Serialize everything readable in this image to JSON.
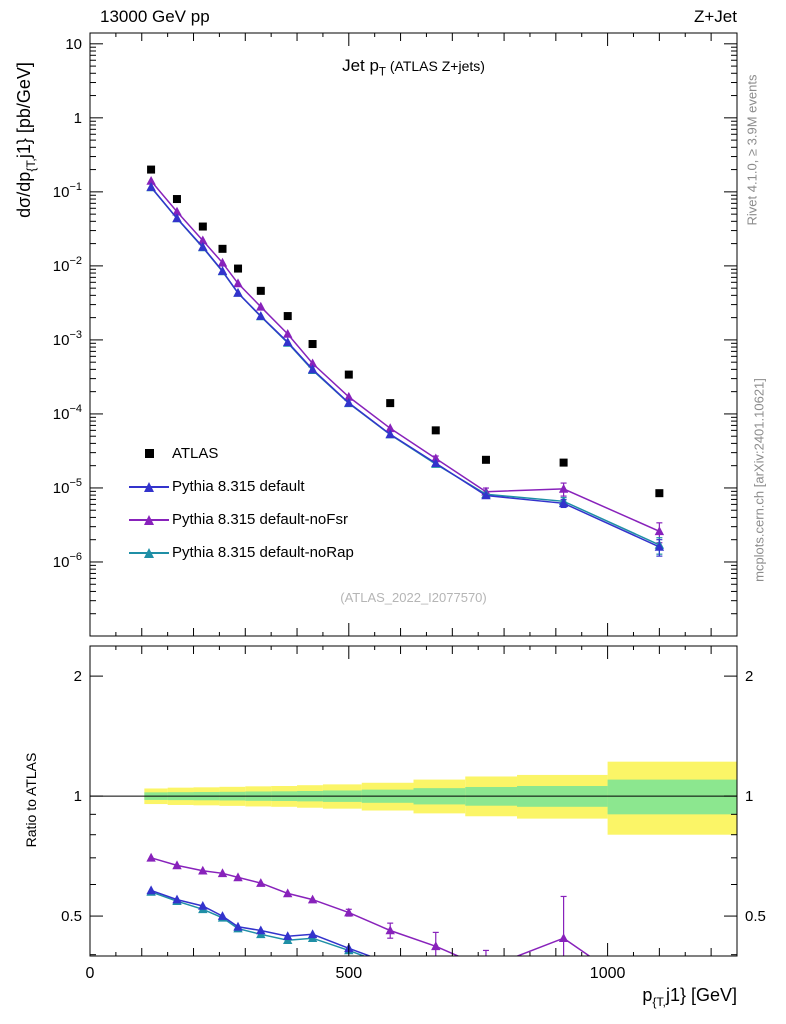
{
  "header": {
    "left": "13000 GeV pp",
    "right": "Z+Jet"
  },
  "titles": {
    "main": "Jet p",
    "main_sub": "T",
    "suffix": " (ATLAS Z+jets)"
  },
  "labels": {
    "ylabel_prefix": "dσ/dp",
    "ylabel_sub": "{T,",
    "ylabel_suffix": "j1} [pb/GeV]",
    "xlabel_prefix": "p",
    "xlabel_sub": "{T,",
    "xlabel_suffix": "j1} [GeV]",
    "ratio_ylabel": "Ratio to ATLAS",
    "watermark": "(ATLAS_2022_I2077570)"
  },
  "side_notes": {
    "top": "Rivet 4.1.0, ≥ 3.9M events",
    "bottom": "mcplots.cern.ch [arXiv:2401.10621]"
  },
  "chart_data": {
    "type": "line",
    "title": "Jet pT (ATLAS Z+jets)",
    "xlabel": "p_{T,j1} [GeV]",
    "ylabel_main": "dσ/dp_{T,j1} [pb/GeV]",
    "ylabel_ratio": "Ratio to ATLAS",
    "x_gev": [
      118,
      168,
      218,
      256,
      286,
      330,
      382,
      430,
      500,
      580,
      668,
      765,
      915,
      1100
    ],
    "atlas": {
      "label": "ATLAS",
      "color": "#000000",
      "marker": "square",
      "values": [
        0.2,
        0.08,
        0.034,
        0.017,
        0.0092,
        0.0046,
        0.0021,
        0.00088,
        0.00034,
        0.00014,
        6e-05,
        2.4e-05,
        2.2e-05,
        8.5e-06
      ]
    },
    "series": [
      {
        "key": "default",
        "label": "Pythia 8.315 default",
        "color": "#3333cc",
        "marker": "triangle",
        "values": [
          0.116,
          0.044,
          0.018,
          0.0085,
          0.0043,
          0.0021,
          0.00093,
          0.0004,
          0.000141,
          5.3e-05,
          2.16e-05,
          7.9e-06,
          6.2e-06,
          1.6e-06
        ],
        "value_relerr": [
          0,
          0,
          0,
          0,
          0,
          0,
          0,
          0,
          0,
          0,
          0,
          0,
          0.12,
          0.25
        ],
        "ratio": [
          0.58,
          0.55,
          0.53,
          0.5,
          0.47,
          0.46,
          0.445,
          0.45,
          0.415,
          0.38
        ],
        "ratio_err": [
          0,
          0,
          0,
          0,
          0,
          0,
          0,
          0,
          0,
          0
        ]
      },
      {
        "key": "noFsr",
        "label": "Pythia 8.315 default-noFsr",
        "color": "#8822bb",
        "marker": "triangle",
        "values": [
          0.14,
          0.054,
          0.022,
          0.011,
          0.0058,
          0.0028,
          0.0012,
          0.00048,
          0.00017,
          6.4e-05,
          2.5e-05,
          8.9e-06,
          9.7e-06,
          2.6e-06
        ],
        "value_relerr": [
          0,
          0,
          0,
          0,
          0,
          0,
          0,
          0,
          0,
          0,
          0.08,
          0.12,
          0.2,
          0.3
        ],
        "ratio": [
          0.7,
          0.67,
          0.65,
          0.64,
          0.625,
          0.605,
          0.57,
          0.55,
          0.51,
          0.46,
          0.42,
          0.37,
          0.44,
          0.3
        ],
        "ratio_err": [
          0,
          0,
          0,
          0,
          0,
          0,
          0,
          0,
          0.01,
          0.02,
          0.035,
          0.04,
          0.12,
          0.05
        ]
      },
      {
        "key": "noRap",
        "label": "Pythia 8.315 default-noRap",
        "color": "#1f8fa6",
        "marker": "triangle",
        "values": [
          0.115,
          0.0436,
          0.0177,
          0.0084,
          0.0043,
          0.00207,
          0.00091,
          0.00039,
          0.000139,
          5.25e-05,
          2.1e-05,
          8.2e-06,
          6.6e-06,
          1.7e-06
        ],
        "value_relerr": [
          0,
          0,
          0,
          0,
          0,
          0,
          0,
          0,
          0,
          0,
          0,
          0,
          0.12,
          0.25
        ],
        "ratio": [
          0.575,
          0.545,
          0.52,
          0.495,
          0.465,
          0.45,
          0.435,
          0.44,
          0.41,
          0.375
        ],
        "ratio_err": [
          0,
          0,
          0,
          0,
          0,
          0,
          0,
          0,
          0,
          0
        ]
      }
    ],
    "bands": {
      "yellow_color": "#fbf567",
      "green_color": "#8ce78f",
      "edges_gev": [
        105,
        150,
        200,
        250,
        300,
        350,
        400,
        450,
        525,
        625,
        725,
        825,
        1000,
        1250
      ],
      "yellow_lo": [
        0.955,
        0.95,
        0.948,
        0.945,
        0.942,
        0.94,
        0.935,
        0.93,
        0.92,
        0.905,
        0.89,
        0.878,
        0.8
      ],
      "yellow_hi": [
        1.045,
        1.05,
        1.052,
        1.055,
        1.058,
        1.06,
        1.065,
        1.07,
        1.08,
        1.1,
        1.12,
        1.13,
        1.22
      ],
      "green_lo": [
        0.978,
        0.977,
        0.976,
        0.975,
        0.973,
        0.972,
        0.97,
        0.967,
        0.962,
        0.953,
        0.946,
        0.94,
        0.9
      ],
      "green_hi": [
        1.022,
        1.023,
        1.024,
        1.025,
        1.027,
        1.028,
        1.03,
        1.033,
        1.038,
        1.047,
        1.054,
        1.06,
        1.1
      ]
    },
    "axes": {
      "x": {
        "min": 0,
        "max": 1250,
        "major": [
          0,
          500,
          1000
        ],
        "mid_step": 100,
        "minor_step": 50
      },
      "y_main": {
        "min": 1e-07,
        "max": 14,
        "label_decades": [
          1,
          0,
          -1,
          -2,
          -3,
          -4,
          -5,
          -6
        ]
      },
      "y_ratio": {
        "min": 0.397,
        "max": 2.38,
        "majors": [
          2,
          1,
          0.5
        ],
        "minors": [
          0.4,
          0.6,
          0.7,
          0.8,
          0.9
        ]
      }
    },
    "ratio_reference": 1
  }
}
